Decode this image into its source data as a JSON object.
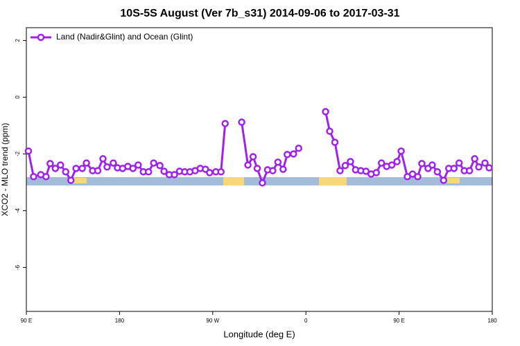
{
  "chart_data": {
    "type": "line",
    "title": "10S-5S August (Ver 7b_s31)   2014-09-06 to 2017-03-31",
    "xlabel": "Longitude (deg E)",
    "ylabel": "XCO2 - MLO trend (ppm)",
    "x": [
      92,
      97,
      104,
      109,
      113,
      118,
      123,
      128,
      133,
      138,
      144,
      148,
      154,
      159,
      164,
      168,
      174,
      178,
      183,
      188,
      193,
      198,
      203,
      208,
      213,
      219,
      223,
      228,
      233,
      238,
      243,
      248,
      253,
      258,
      263,
      267,
      273,
      278,
      282,
      290,
      298,
      304,
      309,
      313,
      318,
      323,
      328,
      333,
      338,
      342,
      348,
      353,
      365,
      379,
      383,
      388,
      393,
      398,
      403,
      408,
      413,
      418,
      423,
      428,
      433,
      438,
      443,
      448,
      452,
      458,
      463,
      468,
      472,
      478,
      482,
      487,
      493,
      498,
      503,
      508,
      513,
      518,
      523,
      527,
      533,
      537
    ],
    "series": [
      {
        "name": "Land (Nadir&Glint) and Ocean (Glint)",
        "color": "#a020f0",
        "values": [
          -1.9,
          -2.8,
          -2.73,
          -2.8,
          -2.34,
          -2.51,
          -2.39,
          -2.63,
          -2.93,
          -2.51,
          -2.51,
          -2.32,
          -2.59,
          -2.59,
          -2.17,
          -2.46,
          -2.32,
          -2.49,
          -2.51,
          -2.44,
          -2.51,
          -2.39,
          -2.63,
          -2.63,
          -2.32,
          -2.41,
          -2.61,
          -2.73,
          -2.73,
          -2.61,
          -2.63,
          -2.63,
          -2.59,
          -2.51,
          -2.54,
          -2.66,
          -2.63,
          -2.63,
          -0.93,
          null,
          -0.88,
          -2.39,
          -2.1,
          -2.51,
          -3.02,
          -2.56,
          -2.59,
          -2.29,
          -2.54,
          -2.02,
          -2.0,
          -1.8,
          null,
          -0.51,
          -1.2,
          -1.59,
          -2.59,
          -2.41,
          -2.27,
          -2.56,
          -2.59,
          -2.61,
          -2.71,
          -2.66,
          -2.32,
          -2.44,
          -2.39,
          -2.27,
          -1.9,
          -2.8,
          -2.71,
          -2.8,
          -2.34,
          -2.51,
          -2.39,
          -2.63,
          -2.93,
          -2.51,
          -2.51,
          -2.32,
          -2.59,
          -2.59,
          -2.17,
          -2.46,
          -2.32,
          -2.49
        ]
      }
    ],
    "xlim": [
      90,
      540
    ],
    "xticks": [
      {
        "value": 90,
        "label": "90 E"
      },
      {
        "value": 180,
        "label": "180"
      },
      {
        "value": 270,
        "label": "90 W"
      },
      {
        "value": 360,
        "label": "0"
      },
      {
        "value": 450,
        "label": "90 E"
      },
      {
        "value": 540,
        "label": "180"
      }
    ],
    "ylim": [
      -7.55,
      2.45
    ],
    "yticks": [
      -6,
      -4,
      -2,
      0,
      2
    ],
    "legend": "top-left"
  }
}
